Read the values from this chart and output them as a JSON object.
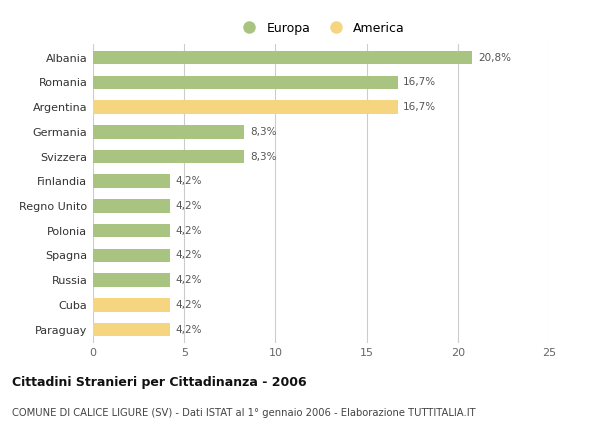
{
  "countries": [
    "Albania",
    "Romania",
    "Argentina",
    "Germania",
    "Svizzera",
    "Finlandia",
    "Regno Unito",
    "Polonia",
    "Spagna",
    "Russia",
    "Cuba",
    "Paraguay"
  ],
  "values": [
    20.8,
    16.7,
    16.7,
    8.3,
    8.3,
    4.2,
    4.2,
    4.2,
    4.2,
    4.2,
    4.2,
    4.2
  ],
  "labels": [
    "20,8%",
    "16,7%",
    "16,7%",
    "8,3%",
    "8,3%",
    "4,2%",
    "4,2%",
    "4,2%",
    "4,2%",
    "4,2%",
    "4,2%",
    "4,2%"
  ],
  "continents": [
    "Europa",
    "Europa",
    "America",
    "Europa",
    "Europa",
    "Europa",
    "Europa",
    "Europa",
    "Europa",
    "Europa",
    "America",
    "America"
  ],
  "color_europa": "#a8c480",
  "color_america": "#f5d580",
  "color_grid": "#cccccc",
  "color_bg": "#ffffff",
  "title": "Cittadini Stranieri per Cittadinanza - 2006",
  "subtitle": "COMUNE DI CALICE LIGURE (SV) - Dati ISTAT al 1° gennaio 2006 - Elaborazione TUTTITALIA.IT",
  "xlim": [
    0,
    25
  ],
  "xticks": [
    0,
    5,
    10,
    15,
    20,
    25
  ],
  "legend_europa": "Europa",
  "legend_america": "America",
  "bar_height": 0.55
}
